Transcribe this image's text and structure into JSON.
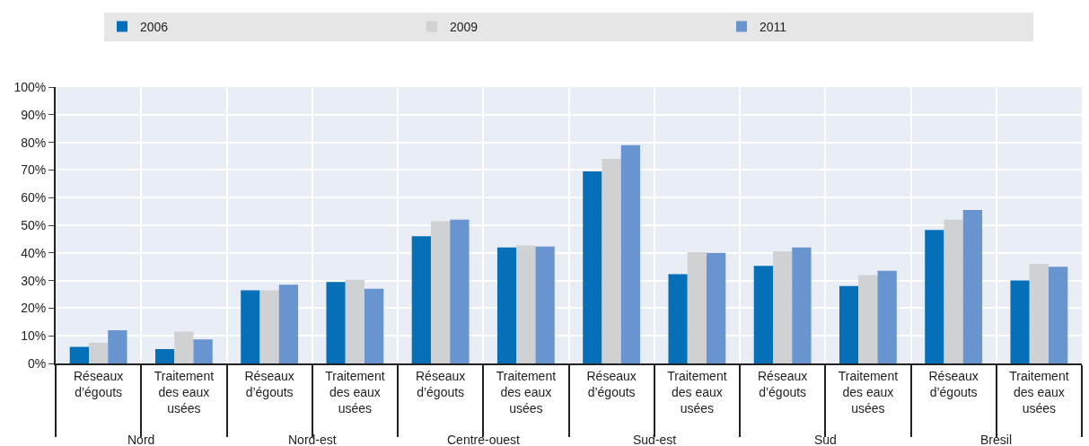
{
  "chart_data": {
    "type": "bar",
    "categories": [
      "Réseaux\nd’égouts",
      "Traitement\ndes eaux\nusées",
      "Réseaux\nd’égouts",
      "Traitement\ndes eaux\nusées",
      "Réseaux\nd’égouts",
      "Traitement\ndes eaux\nusées",
      "Réseaux\nd’égouts",
      "Traitement\ndes eaux\nusées",
      "Réseaux\nd’égouts",
      "Traitement\ndes eaux\nusées",
      "Réseaux\nd’égouts",
      "Traitement\ndes eaux\nusées"
    ],
    "annotations": [
      "Nord",
      "Nord-est",
      "Centre-ouest",
      "Sud-est",
      "Sud",
      "Brésil"
    ],
    "series": [
      {
        "name": "2006",
        "color": "#0570b8",
        "values": [
          6,
          5.2,
          26.5,
          29.5,
          46,
          42,
          69.5,
          32.3,
          35.3,
          28,
          48.3,
          30
        ]
      },
      {
        "name": "2009",
        "color": "#d0d1d3",
        "values": [
          7.5,
          11.5,
          26.5,
          30.3,
          51.5,
          42.7,
          74,
          40.3,
          40.5,
          32,
          52,
          36
        ]
      },
      {
        "name": "2011",
        "color": "#6894cf",
        "values": [
          12,
          8.7,
          28.5,
          27,
          52,
          42.3,
          79,
          40,
          42,
          33.5,
          55.5,
          35
        ]
      }
    ],
    "ylim": [
      0,
      100
    ],
    "yticks": [
      {
        "value": 0,
        "label": "0%"
      },
      {
        "value": 10,
        "label": "10%"
      },
      {
        "value": 20,
        "label": "20%"
      },
      {
        "value": 30,
        "label": "30%"
      },
      {
        "value": 40,
        "label": "40%"
      },
      {
        "value": 50,
        "label": "50%"
      },
      {
        "value": 60,
        "label": "60%"
      },
      {
        "value": 70,
        "label": "70%"
      },
      {
        "value": 80,
        "label": "80%"
      },
      {
        "value": 90,
        "label": "90%"
      },
      {
        "value": 100,
        "label": "100%"
      }
    ],
    "grid": true,
    "legend": "top"
  }
}
